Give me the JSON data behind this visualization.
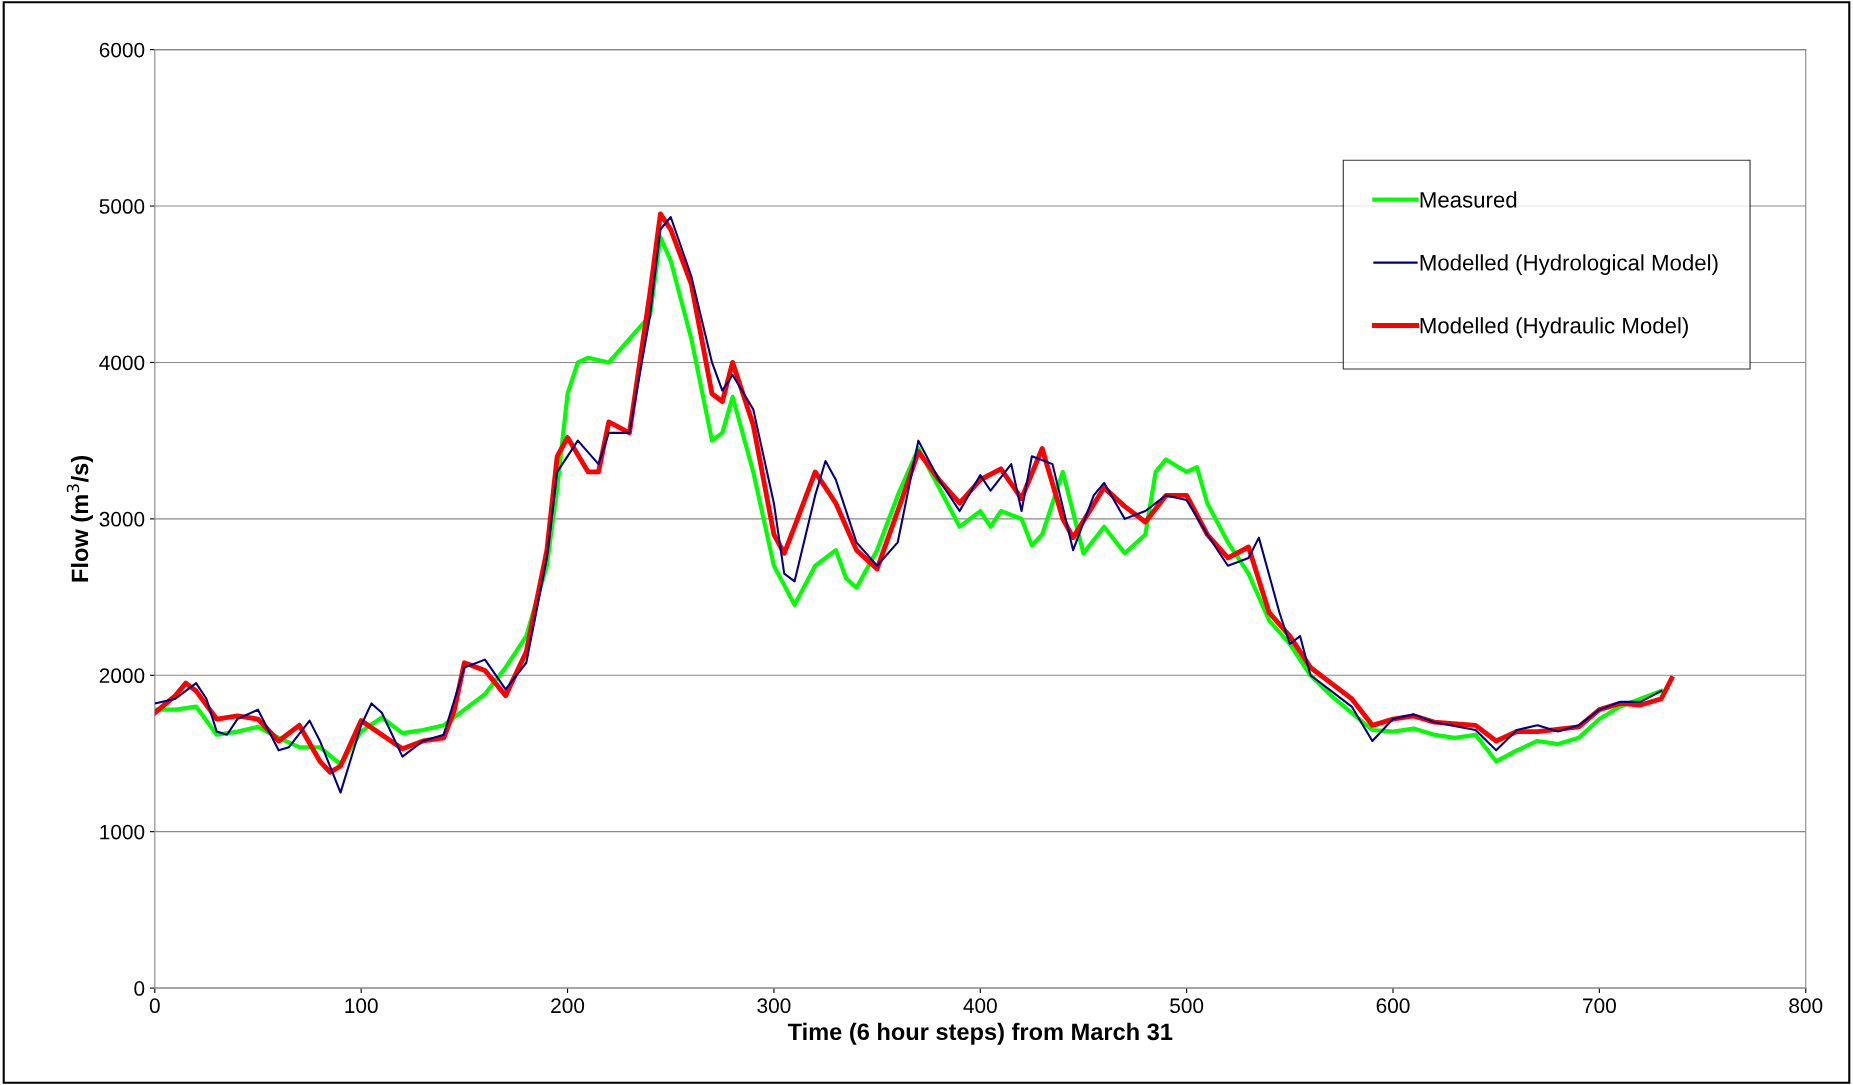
{
  "chart_data": {
    "type": "line",
    "xlabel": "Time (6 hour steps) from March 31",
    "ylabel": "Flow (m$^{3}$/s)",
    "xlim": [
      0,
      800
    ],
    "xticks": [
      0,
      100,
      200,
      300,
      400,
      500,
      600,
      700,
      800
    ],
    "ylim": [
      0,
      6000
    ],
    "yticks": [
      0,
      1000,
      2000,
      3000,
      4000,
      5000,
      6000
    ],
    "grid": "y",
    "legend": "top right",
    "marker": "none",
    "line_style": "solid",
    "series": [
      {
        "name": "Measured",
        "color": "#00ff00",
        "x": [
          0,
          10,
          20,
          30,
          40,
          50,
          60,
          70,
          80,
          90,
          100,
          110,
          120,
          130,
          140,
          150,
          160,
          170,
          180,
          190,
          195,
          200,
          205,
          210,
          220,
          230,
          240,
          245,
          250,
          260,
          270,
          275,
          280,
          290,
          300,
          310,
          320,
          330,
          335,
          340,
          350,
          360,
          370,
          380,
          390,
          400,
          405,
          410,
          420,
          425,
          430,
          440,
          450,
          460,
          470,
          480,
          485,
          490,
          500,
          505,
          510,
          520,
          530,
          540,
          550,
          560,
          570,
          580,
          590,
          600,
          610,
          620,
          630,
          640,
          650,
          660,
          670,
          680,
          690,
          700,
          710,
          720,
          730
        ],
        "values": [
          1780,
          1780,
          1800,
          1620,
          1640,
          1670,
          1600,
          1540,
          1540,
          1430,
          1640,
          1730,
          1630,
          1650,
          1680,
          1780,
          1880,
          2050,
          2250,
          2700,
          3200,
          3800,
          4000,
          4030,
          4000,
          4150,
          4300,
          4800,
          4650,
          4150,
          3500,
          3550,
          3780,
          3300,
          2700,
          2450,
          2700,
          2800,
          2620,
          2560,
          2800,
          3150,
          3450,
          3200,
          2950,
          3050,
          2950,
          3050,
          3000,
          2830,
          2900,
          3300,
          2780,
          2950,
          2780,
          2900,
          3300,
          3380,
          3300,
          3330,
          3100,
          2850,
          2650,
          2350,
          2200,
          2000,
          1870,
          1760,
          1650,
          1640,
          1660,
          1620,
          1600,
          1620,
          1450,
          1520,
          1580,
          1560,
          1600,
          1720,
          1800,
          1850,
          1900
        ]
      },
      {
        "name": "Modelled (Hydrological Model)",
        "color": "#000080",
        "x": [
          0,
          10,
          20,
          25,
          30,
          35,
          40,
          50,
          60,
          65,
          75,
          80,
          90,
          100,
          105,
          110,
          120,
          130,
          140,
          150,
          160,
          170,
          180,
          190,
          195,
          205,
          215,
          220,
          230,
          240,
          245,
          250,
          260,
          270,
          275,
          280,
          290,
          300,
          305,
          310,
          320,
          325,
          330,
          340,
          350,
          360,
          370,
          380,
          390,
          400,
          405,
          415,
          420,
          425,
          435,
          445,
          455,
          460,
          470,
          480,
          490,
          500,
          510,
          520,
          530,
          535,
          545,
          550,
          555,
          560,
          570,
          580,
          590,
          600,
          610,
          620,
          640,
          650,
          660,
          670,
          680,
          690,
          700,
          710,
          720,
          730
        ],
        "values": [
          1820,
          1850,
          1950,
          1850,
          1640,
          1620,
          1720,
          1780,
          1520,
          1540,
          1710,
          1580,
          1250,
          1680,
          1820,
          1760,
          1480,
          1580,
          1620,
          2050,
          2100,
          1910,
          2080,
          2750,
          3300,
          3500,
          3350,
          3550,
          3550,
          4300,
          4850,
          4930,
          4550,
          4000,
          3820,
          3920,
          3700,
          3100,
          2650,
          2600,
          3150,
          3370,
          3250,
          2850,
          2700,
          2850,
          3500,
          3250,
          3050,
          3280,
          3180,
          3350,
          3050,
          3400,
          3350,
          2800,
          3150,
          3230,
          3000,
          3050,
          3150,
          3120,
          2900,
          2700,
          2750,
          2880,
          2400,
          2200,
          2250,
          2000,
          1900,
          1800,
          1580,
          1720,
          1750,
          1700,
          1650,
          1520,
          1650,
          1680,
          1640,
          1680,
          1780,
          1830,
          1830,
          1900
        ]
      },
      {
        "name": "Modelled (Hydraulic Model)",
        "color": "#ff0000",
        "x": [
          0,
          10,
          15,
          20,
          30,
          40,
          50,
          60,
          70,
          80,
          85,
          90,
          100,
          110,
          120,
          130,
          140,
          145,
          150,
          160,
          170,
          180,
          190,
          195,
          200,
          210,
          215,
          220,
          230,
          240,
          245,
          250,
          260,
          270,
          275,
          280,
          290,
          300,
          305,
          310,
          320,
          330,
          340,
          350,
          360,
          370,
          380,
          390,
          400,
          410,
          420,
          430,
          440,
          445,
          460,
          470,
          480,
          490,
          500,
          510,
          520,
          530,
          540,
          550,
          560,
          570,
          580,
          590,
          600,
          610,
          620,
          640,
          650,
          660,
          670,
          690,
          700,
          710,
          720,
          730,
          735
        ],
        "values": [
          1760,
          1870,
          1950,
          1900,
          1720,
          1740,
          1720,
          1580,
          1680,
          1450,
          1380,
          1420,
          1710,
          1620,
          1530,
          1580,
          1600,
          1770,
          2080,
          2030,
          1870,
          2150,
          2800,
          3400,
          3520,
          3300,
          3300,
          3620,
          3550,
          4450,
          4950,
          4850,
          4500,
          3800,
          3750,
          4000,
          3600,
          2900,
          2780,
          2950,
          3300,
          3100,
          2800,
          2680,
          3050,
          3430,
          3250,
          3100,
          3250,
          3320,
          3130,
          3450,
          3000,
          2880,
          3200,
          3080,
          2980,
          3150,
          3150,
          2900,
          2750,
          2820,
          2400,
          2250,
          2050,
          1950,
          1850,
          1680,
          1720,
          1740,
          1700,
          1680,
          1580,
          1640,
          1640,
          1670,
          1780,
          1820,
          1810,
          1850,
          1980
        ]
      }
    ]
  }
}
